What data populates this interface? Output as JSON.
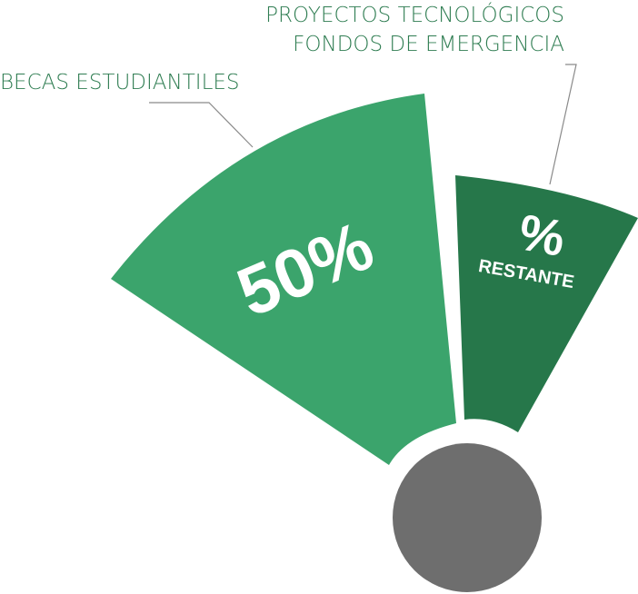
{
  "chart_data": {
    "type": "pie",
    "title": "",
    "slices": [
      {
        "name": "BECAS ESTUDIANTILES",
        "value": 50,
        "value_label": "50%",
        "color": "#3ba46c"
      },
      {
        "name": "PROYECTOS TECNOLÓGICOS FONDOS DE EMERGENCIA",
        "value": null,
        "value_label": "%",
        "sub_label": "RESTANTE",
        "color": "#26774a"
      }
    ],
    "hub_color": "#6e6e6e",
    "label_color": "#2f7d52",
    "callouts": {
      "left": "BECAS ESTUDIANTILES",
      "right_line1": "PROYECTOS TECNOLÓGICOS",
      "right_line2": "FONDOS DE EMERGENCIA"
    }
  }
}
